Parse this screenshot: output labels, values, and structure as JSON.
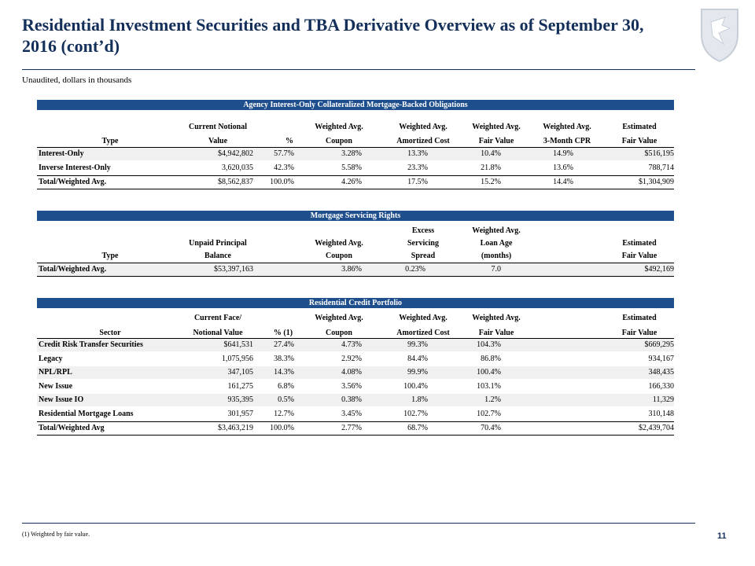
{
  "header": {
    "title": "Residential Investment Securities and TBA Derivative Overview as of September 30, 2016 (cont’d)",
    "subtitle": "Unaudited, dollars in thousands"
  },
  "tables": [
    {
      "title": "Agency Interest-Only Collateralized Mortgage-Backed Obligations",
      "columns": [
        [
          "Type"
        ],
        [
          "Current Notional",
          "Value"
        ],
        [
          "%"
        ],
        [
          "Weighted Avg.",
          "Coupon"
        ],
        [
          "Weighted Avg.",
          "Amortized Cost"
        ],
        [
          "Weighted Avg.",
          "Fair Value"
        ],
        [
          "Weighted Avg.",
          "3-Month CPR"
        ],
        [
          "Estimated",
          "Fair Value"
        ]
      ],
      "rows": [
        [
          "Interest-Only",
          "$4,942,802",
          "57.7%",
          "3.28%",
          "13.3%",
          "10.4%",
          "14.9%",
          "$516,195"
        ],
        [
          "Inverse Interest-Only",
          "3,620,035",
          "42.3%",
          "5.58%",
          "23.3%",
          "21.8%",
          "13.6%",
          "788,714"
        ],
        [
          "Total/Weighted Avg.",
          "$8,562,837",
          "100.0%",
          "4.26%",
          "17.5%",
          "15.2%",
          "14.4%",
          "$1,304,909"
        ]
      ]
    },
    {
      "title": "Mortgage Servicing Rights",
      "columns": [
        [
          "Type"
        ],
        [
          "Unpaid Principal",
          "Balance"
        ],
        [
          "Weighted Avg.",
          "Coupon"
        ],
        [
          "Excess",
          "Servicing",
          "Spread"
        ],
        [
          "Weighted Avg.",
          "Loan Age",
          "(months)"
        ],
        [
          "Estimated",
          "Fair Value"
        ]
      ],
      "rows": [
        [
          "Total/Weighted Avg.",
          "$53,397,163",
          "3.86%",
          "0.23%",
          "7.0",
          "$492,169"
        ]
      ]
    },
    {
      "title": "Residential Credit Portfolio",
      "columns": [
        [
          "Sector"
        ],
        [
          "Current Face/",
          "Notional Value"
        ],
        [
          "% (1)"
        ],
        [
          "Weighted Avg.",
          "Coupon"
        ],
        [
          "Weighted Avg.",
          "Amortized Cost"
        ],
        [
          "Weighted Avg.",
          "Fair Value"
        ],
        [
          "Estimated",
          "Fair Value"
        ]
      ],
      "rows": [
        [
          "Credit Risk Transfer Securities",
          "$641,531",
          "27.4%",
          "4.73%",
          "99.3%",
          "104.3%",
          "$669,295"
        ],
        [
          "Legacy",
          "1,075,956",
          "38.3%",
          "2.92%",
          "84.4%",
          "86.8%",
          "934,167"
        ],
        [
          "NPL/RPL",
          "347,105",
          "14.3%",
          "4.08%",
          "99.9%",
          "100.4%",
          "348,435"
        ],
        [
          "New Issue",
          "161,275",
          "6.8%",
          "3.56%",
          "100.4%",
          "103.1%",
          "166,330"
        ],
        [
          "New Issue IO",
          "935,395",
          "0.5%",
          "0.38%",
          "1.8%",
          "1.2%",
          "11,329"
        ],
        [
          "Residential Mortgage Loans",
          "301,957",
          "12.7%",
          "3.45%",
          "102.7%",
          "102.7%",
          "310,148"
        ],
        [
          "Total/Weighted Avg",
          "$3,463,219",
          "100.0%",
          "2.77%",
          "68.7%",
          "70.4%",
          "$2,439,704"
        ]
      ]
    }
  ],
  "footnote": "(1) Weighted by fair value.",
  "page_number": "11"
}
